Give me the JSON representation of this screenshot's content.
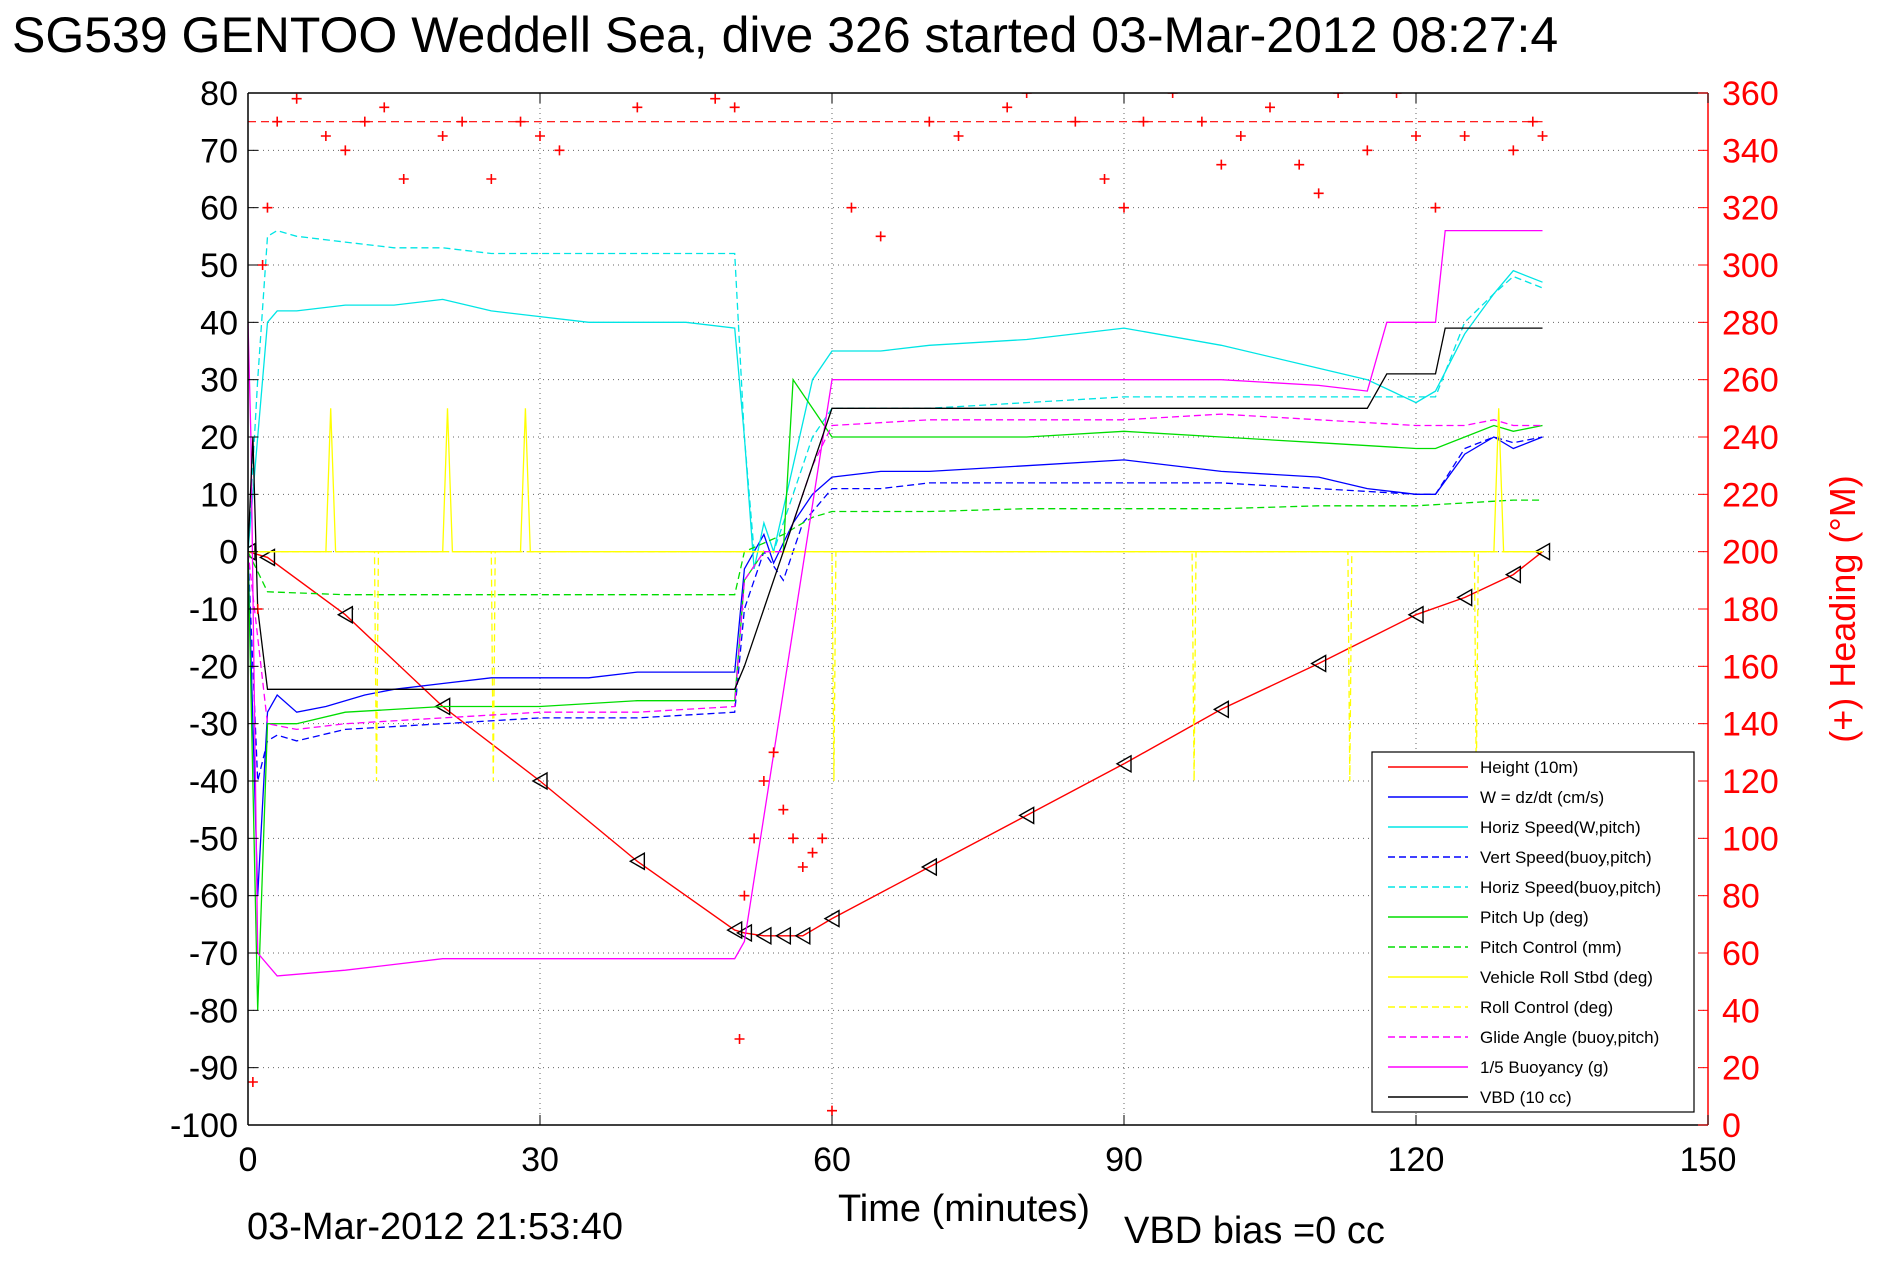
{
  "title": "SG539 GENTOO Weddell Sea, dive 326 started 03-Mar-2012 08:27:4",
  "footer": {
    "generated": "03-Mar-2012 21:53:40",
    "xlabel": "Time (minutes)",
    "vbd_bias": "VBD bias =0 cc"
  },
  "chart_data": {
    "type": "line",
    "xlabel": "Time (minutes)",
    "ylabel": "",
    "y2label": "(+) Heading (°M)",
    "xlim": [
      0,
      150
    ],
    "ylim": [
      -100,
      80
    ],
    "y2lim": [
      0,
      360
    ],
    "xticks": [
      0,
      30,
      60,
      90,
      120,
      150
    ],
    "yticks": [
      -100,
      -90,
      -80,
      -70,
      -60,
      -50,
      -40,
      -30,
      -20,
      -10,
      0,
      10,
      20,
      30,
      40,
      50,
      60,
      70,
      80
    ],
    "y2ticks": [
      0,
      20,
      40,
      60,
      80,
      100,
      120,
      140,
      160,
      180,
      200,
      220,
      240,
      260,
      280,
      300,
      320,
      340,
      360
    ],
    "grid": true,
    "legend_position": "bottom-right",
    "colors": {
      "left_axis": "#000000",
      "right_axis": "#ff0000"
    },
    "series": [
      {
        "name": "Height (10m)",
        "color": "#ff0000",
        "style": "solid",
        "x": [
          0,
          2,
          10,
          20,
          30,
          40,
          50,
          51,
          53,
          55,
          57,
          60,
          70,
          80,
          90,
          100,
          110,
          120,
          125,
          130,
          133
        ],
        "y": [
          0,
          -1,
          -11,
          -27,
          -40,
          -54,
          -66,
          -66.5,
          -67,
          -67,
          -67,
          -64,
          -55,
          -46,
          -37,
          -27.5,
          -19.5,
          -11,
          -8,
          -4,
          0
        ]
      },
      {
        "name": "W = dz/dt (cm/s)",
        "color": "#0000ff",
        "style": "solid",
        "x": [
          0,
          0.5,
          1,
          2,
          3,
          5,
          8,
          12,
          15,
          20,
          25,
          30,
          35,
          40,
          45,
          50,
          51,
          52,
          53,
          54,
          56,
          58,
          60,
          65,
          70,
          80,
          90,
          100,
          110,
          115,
          120,
          122,
          125,
          128,
          130,
          133
        ],
        "y": [
          0,
          -30,
          -60,
          -28,
          -25,
          -28,
          -27,
          -25,
          -24,
          -23,
          -22,
          -22,
          -22,
          -21,
          -21,
          -21,
          -3,
          0,
          3,
          -2,
          5,
          10,
          13,
          14,
          14,
          15,
          16,
          14,
          13,
          11,
          10,
          10,
          17,
          20,
          18,
          20
        ]
      },
      {
        "name": "Horiz Speed(W,pitch)",
        "color": "#00e5e5",
        "style": "solid",
        "x": [
          0,
          1,
          2,
          3,
          5,
          10,
          15,
          20,
          25,
          30,
          35,
          40,
          45,
          50,
          51,
          52,
          53,
          54,
          56,
          58,
          60,
          65,
          70,
          80,
          90,
          100,
          110,
          115,
          120,
          122,
          125,
          128,
          130,
          133
        ],
        "y": [
          0,
          20,
          40,
          42,
          42,
          43,
          43,
          44,
          42,
          41,
          40,
          40,
          40,
          39,
          20,
          -3,
          5,
          0,
          15,
          30,
          35,
          35,
          36,
          37,
          39,
          36,
          32,
          30,
          26,
          28,
          38,
          45,
          49,
          47
        ]
      },
      {
        "name": "Vert Speed(buoy,pitch)",
        "color": "#0000ff",
        "style": "dashed",
        "x": [
          0,
          1,
          2,
          3,
          5,
          10,
          20,
          30,
          40,
          50,
          51,
          53,
          55,
          57,
          60,
          65,
          70,
          80,
          90,
          100,
          110,
          120,
          122,
          125,
          128,
          130,
          133
        ],
        "y": [
          0,
          -40,
          -33,
          -32,
          -33,
          -31,
          -30,
          -29,
          -29,
          -28,
          -10,
          0,
          -5,
          5,
          11,
          11,
          12,
          12,
          12,
          12,
          11,
          10,
          10,
          18,
          20,
          19,
          20
        ]
      },
      {
        "name": "Horiz Speed(buoy,pitch)",
        "color": "#00e5e5",
        "style": "dashed",
        "x": [
          0,
          1,
          2,
          3,
          5,
          10,
          15,
          20,
          25,
          30,
          35,
          40,
          45,
          50,
          51,
          52,
          54,
          56,
          58,
          60,
          65,
          70,
          80,
          90,
          100,
          110,
          120,
          122,
          125,
          128,
          130,
          133
        ],
        "y": [
          0,
          30,
          55,
          56,
          55,
          54,
          53,
          53,
          52,
          52,
          52,
          52,
          52,
          52,
          20,
          0,
          0,
          10,
          20,
          25,
          25,
          25,
          26,
          27,
          27,
          27,
          27,
          27,
          40,
          45,
          48,
          46
        ]
      },
      {
        "name": "Pitch Up (deg)",
        "color": "#00dd00",
        "style": "solid",
        "x": [
          0,
          1,
          2,
          3,
          5,
          10,
          20,
          30,
          40,
          50,
          51,
          53,
          55,
          56,
          58,
          60,
          70,
          80,
          90,
          100,
          110,
          120,
          122,
          125,
          128,
          130,
          133
        ],
        "y": [
          0,
          -80,
          -30,
          -30,
          -30,
          -28,
          -27,
          -27,
          -26,
          -26,
          -5,
          0,
          0,
          30,
          25,
          20,
          20,
          20,
          21,
          20,
          19,
          18,
          18,
          20,
          22,
          21,
          22
        ]
      },
      {
        "name": "Pitch Control (mm)",
        "color": "#00dd00",
        "style": "dashed",
        "x": [
          0,
          2,
          10,
          20,
          30,
          40,
          50,
          51,
          55,
          58,
          60,
          70,
          80,
          90,
          100,
          110,
          120,
          130,
          133
        ],
        "y": [
          0,
          -7,
          -7.5,
          -7.5,
          -7.5,
          -7.5,
          -7.5,
          0,
          3,
          6,
          7,
          7,
          7.5,
          7.5,
          7.5,
          8,
          8,
          9,
          9
        ]
      },
      {
        "name": "Vehicle Roll Stbd (deg)",
        "color": "#ffff00",
        "style": "solid",
        "x": [
          0,
          5,
          8,
          8.5,
          9,
          20,
          20.5,
          21,
          28,
          28.5,
          29,
          40,
          50,
          55,
          60,
          70,
          80,
          90,
          100,
          110,
          120,
          128,
          128.5,
          129,
          133
        ],
        "y": [
          0,
          0,
          0,
          25,
          0,
          0,
          25,
          0,
          0,
          25,
          0,
          0,
          0,
          0,
          0,
          0,
          0,
          0,
          0,
          0,
          0,
          0,
          25,
          0,
          0
        ]
      },
      {
        "name": "Roll Control (deg)",
        "color": "#ffff00",
        "style": "dashed",
        "x": [
          0,
          13,
          13.2,
          13.4,
          25,
          25.2,
          25.4,
          60,
          60.2,
          60.4,
          97,
          97.2,
          97.4,
          113,
          113.2,
          113.4,
          126,
          126.2,
          126.4,
          133
        ],
        "y": [
          0,
          0,
          -40,
          0,
          0,
          -40,
          0,
          0,
          -40,
          0,
          0,
          -40,
          0,
          0,
          -40,
          0,
          0,
          -40,
          0,
          0
        ]
      },
      {
        "name": "Glide Angle (buoy,pitch)",
        "color": "#ff00ff",
        "style": "dashed",
        "x": [
          0,
          2,
          5,
          10,
          20,
          30,
          40,
          50,
          51,
          53,
          55,
          58,
          60,
          70,
          80,
          90,
          100,
          110,
          120,
          125,
          128,
          130,
          133
        ],
        "y": [
          0,
          -30,
          -31,
          -30,
          -29,
          -28,
          -28,
          -27,
          -5,
          0,
          0,
          15,
          22,
          23,
          23,
          23,
          24,
          23,
          22,
          22,
          23,
          22,
          22
        ]
      },
      {
        "name": "1/5 Buoyancy (g)",
        "color": "#ff00ff",
        "style": "solid",
        "x": [
          0,
          0.3,
          1,
          3,
          10,
          20,
          30,
          40,
          50,
          51,
          60,
          70,
          80,
          90,
          100,
          110,
          115,
          117,
          122,
          123,
          133
        ],
        "y": [
          40,
          20,
          -70,
          -74,
          -73,
          -71,
          -71,
          -71,
          -71,
          -68,
          30,
          30,
          30,
          30,
          30,
          29,
          28,
          40,
          40,
          56,
          56
        ]
      },
      {
        "name": "VBD (10 cc)",
        "color": "#000000",
        "style": "solid",
        "x": [
          0,
          0.5,
          1,
          2,
          5,
          20,
          30,
          40,
          50,
          51,
          52,
          55,
          58,
          60,
          70,
          80,
          90,
          100,
          110,
          115,
          117,
          122,
          123,
          133
        ],
        "y": [
          0,
          20,
          -10,
          -24,
          -24,
          -24,
          -24,
          -24,
          -24,
          -20,
          -15,
          0,
          15,
          25,
          25,
          25,
          25,
          25,
          25,
          25,
          31,
          31,
          39,
          39
        ]
      },
      {
        "name": "Heading",
        "axis": "right",
        "color": "#ff0000",
        "marker": "+",
        "x": [
          0.5,
          1,
          1.5,
          2,
          3,
          5,
          8,
          10,
          12,
          14,
          16,
          20,
          22,
          25,
          28,
          30,
          32,
          40,
          48,
          50,
          50.5,
          51,
          52,
          53,
          54,
          55,
          56,
          57,
          58,
          59,
          60,
          62,
          65,
          70,
          73,
          78,
          80,
          85,
          88,
          90,
          92,
          95,
          98,
          100,
          102,
          105,
          108,
          110,
          112,
          115,
          118,
          120,
          122,
          125,
          130,
          132,
          133
        ],
        "y": [
          15,
          180,
          300,
          320,
          350,
          358,
          345,
          340,
          350,
          355,
          330,
          345,
          350,
          330,
          350,
          345,
          340,
          355,
          358,
          355,
          30,
          80,
          100,
          120,
          130,
          110,
          100,
          90,
          95,
          100,
          5,
          320,
          310,
          350,
          345,
          355,
          360,
          350,
          330,
          320,
          350,
          360,
          350,
          335,
          345,
          355,
          335,
          325,
          360,
          340,
          360,
          345,
          320,
          345,
          340,
          350,
          345
        ]
      }
    ]
  }
}
